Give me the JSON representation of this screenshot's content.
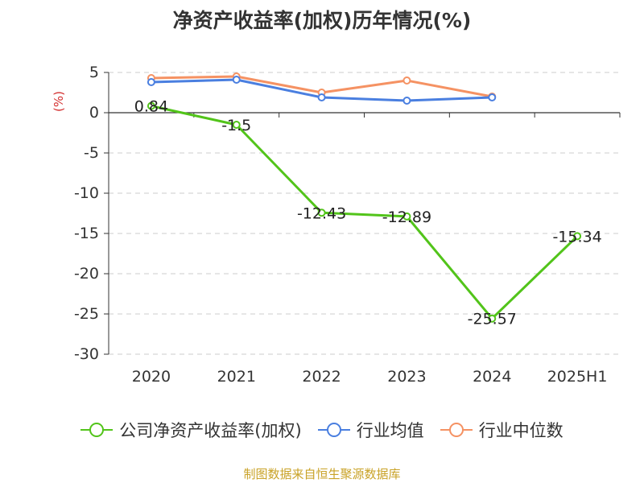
{
  "title": "净资产收益率(加权)历年情况(%)",
  "source": "制图数据来自恒生聚源数据库",
  "chart_data": {
    "type": "line",
    "unit_label": "(%)",
    "categories": [
      "2020",
      "2021",
      "2022",
      "2023",
      "2024",
      "2025H1"
    ],
    "ylim": [
      -30,
      5
    ],
    "yticks": [
      5,
      0,
      -5,
      -10,
      -15,
      -20,
      -25,
      -30
    ],
    "grid": true,
    "legend_position": "bottom",
    "series": [
      {
        "name": "公司净资产收益率(加权)",
        "color": "#52c41a",
        "values": [
          0.84,
          -1.5,
          -12.43,
          -12.89,
          -25.57,
          -15.34
        ],
        "labels": [
          "0.84",
          "-1.5",
          "-12.43",
          "-12.89",
          "-25.57",
          "-15.34"
        ]
      },
      {
        "name": "行业均值",
        "color": "#4a7fe0",
        "values": [
          3.8,
          4.1,
          1.9,
          1.5,
          1.9,
          null
        ]
      },
      {
        "name": "行业中位数",
        "color": "#f59263",
        "values": [
          4.3,
          4.5,
          2.5,
          4.0,
          2.0,
          null
        ]
      }
    ]
  }
}
